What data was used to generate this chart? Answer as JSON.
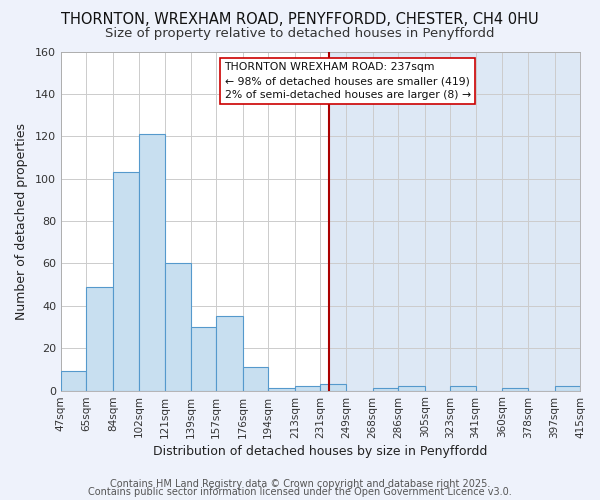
{
  "title": "THORNTON, WREXHAM ROAD, PENYFFORDD, CHESTER, CH4 0HU",
  "subtitle": "Size of property relative to detached houses in Penyffordd",
  "xlabel": "Distribution of detached houses by size in Penyffordd",
  "ylabel": "Number of detached properties",
  "bar_edges": [
    47,
    65,
    84,
    102,
    121,
    139,
    157,
    176,
    194,
    213,
    231,
    249,
    268,
    286,
    305,
    323,
    341,
    360,
    378,
    397,
    415
  ],
  "bar_heights": [
    9,
    49,
    103,
    121,
    60,
    30,
    35,
    11,
    1,
    2,
    3,
    0,
    1,
    2,
    0,
    2,
    0,
    1,
    0,
    2
  ],
  "bar_color": "#c8dff0",
  "bar_edge_color": "#5599cc",
  "vline_x": 237,
  "vline_color": "#aa0000",
  "ylim": [
    0,
    160
  ],
  "yticks": [
    0,
    20,
    40,
    60,
    80,
    100,
    120,
    140,
    160
  ],
  "annotation_title": "THORNTON WREXHAM ROAD: 237sqm",
  "annotation_line1": "← 98% of detached houses are smaller (419)",
  "annotation_line2": "2% of semi-detached houses are larger (8) →",
  "tick_labels": [
    "47sqm",
    "65sqm",
    "84sqm",
    "102sqm",
    "121sqm",
    "139sqm",
    "157sqm",
    "176sqm",
    "194sqm",
    "213sqm",
    "231sqm",
    "249sqm",
    "268sqm",
    "286sqm",
    "305sqm",
    "323sqm",
    "341sqm",
    "360sqm",
    "378sqm",
    "397sqm",
    "415sqm"
  ],
  "footnote1": "Contains HM Land Registry data © Crown copyright and database right 2025.",
  "footnote2": "Contains public sector information licensed under the Open Government Licence v3.0.",
  "bg_left_color": "#ffffff",
  "bg_right_color": "#dde8f5",
  "grid_color": "#cccccc",
  "title_fontsize": 10.5,
  "subtitle_fontsize": 9.5,
  "axis_label_fontsize": 9,
  "tick_fontsize": 7.5,
  "footnote_fontsize": 7
}
